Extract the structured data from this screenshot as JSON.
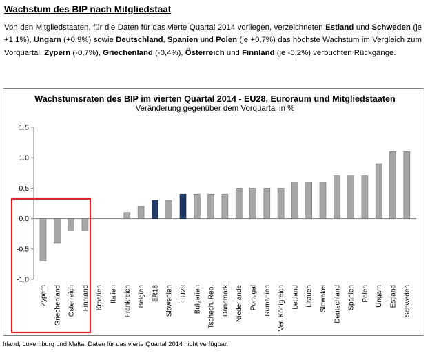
{
  "heading": "Wachstum des BIP nach Mitgliedstaat",
  "paragraph": [
    {
      "t": "Von den Mitgliedstaaten, für die Daten für das vierte Quartal 2014 vorliegen, verzeichneten ",
      "b": false
    },
    {
      "t": "Estland",
      "b": true
    },
    {
      "t": " und ",
      "b": false
    },
    {
      "t": "Schweden",
      "b": true
    },
    {
      "t": " (je +1,1%), ",
      "b": false
    },
    {
      "t": "Ungarn",
      "b": true
    },
    {
      "t": " (+0,9%) sowie ",
      "b": false
    },
    {
      "t": "Deutschland",
      "b": true
    },
    {
      "t": ", ",
      "b": false
    },
    {
      "t": "Spanien",
      "b": true
    },
    {
      "t": " und ",
      "b": false
    },
    {
      "t": "Polen",
      "b": true
    },
    {
      "t": " (je +0,7%) das höchste Wachstum im Vergleich zum Vorquartal. ",
      "b": false
    },
    {
      "t": "Zypern",
      "b": true
    },
    {
      "t": " (-0,7%), ",
      "b": false
    },
    {
      "t": "Griechenland",
      "b": true
    },
    {
      "t": " (-0,4%), ",
      "b": false
    },
    {
      "t": "Österreich",
      "b": true
    },
    {
      "t": " und ",
      "b": false
    },
    {
      "t": "Finnland",
      "b": true
    },
    {
      "t": " (je -0,2%) verbuchten Rückgänge.",
      "b": false
    }
  ],
  "footnote": "Irland, Luxemburg und Malta: Daten für das vierte Quartal 2014 nicht verfügbar.",
  "colors": {
    "bar": "#a6a6a6",
    "aggregate_bar": "#1f3864",
    "highlight_box": "#d9262c",
    "axis": "#7f7f7f",
    "gridline": "#bfbfbf"
  },
  "chart_data": {
    "type": "bar",
    "title": "Wachstumsraten des BIP im vierten Quartal 2014 - EU28, Euroraum und Mitgliedstaaten",
    "subtitle": "Veränderung gegenüber dem Vorquartal in %",
    "xlabel": "",
    "ylabel": "",
    "ylim": [
      -1.0,
      1.5
    ],
    "yticks": [
      1.5,
      1.0,
      0.5,
      0.0,
      -0.5,
      -1.0
    ],
    "ytick_labels": [
      "1.5",
      "1.0",
      "0.5",
      "0.0",
      "-0.5",
      "-1.0"
    ],
    "grid": false,
    "categories": [
      "Zypern",
      "Griechenland",
      "Österreich",
      "Finnland",
      "Kroatien",
      "Italien",
      "Frankreich",
      "Belgien",
      "ER18",
      "Slowenien",
      "EU28",
      "Bulgarien",
      "Tschech. Rep.",
      "Dänemark",
      "Niederlande",
      "Portugal",
      "Rumänien",
      "Ver. Königreich",
      "Lettland",
      "Litauen",
      "Slowakei",
      "Deutschland",
      "Spanien",
      "Polen",
      "Ungarn",
      "Estland",
      "Schweden"
    ],
    "values": [
      -0.7,
      -0.4,
      -0.2,
      -0.2,
      0.0,
      0.0,
      0.1,
      0.2,
      0.3,
      0.3,
      0.4,
      0.4,
      0.4,
      0.4,
      0.5,
      0.5,
      0.5,
      0.5,
      0.6,
      0.6,
      0.6,
      0.7,
      0.7,
      0.7,
      0.9,
      1.1,
      1.1
    ],
    "aggregates": [
      "ER18",
      "EU28"
    ],
    "highlighted": [
      "Zypern",
      "Griechenland",
      "Österreich",
      "Finnland"
    ]
  }
}
